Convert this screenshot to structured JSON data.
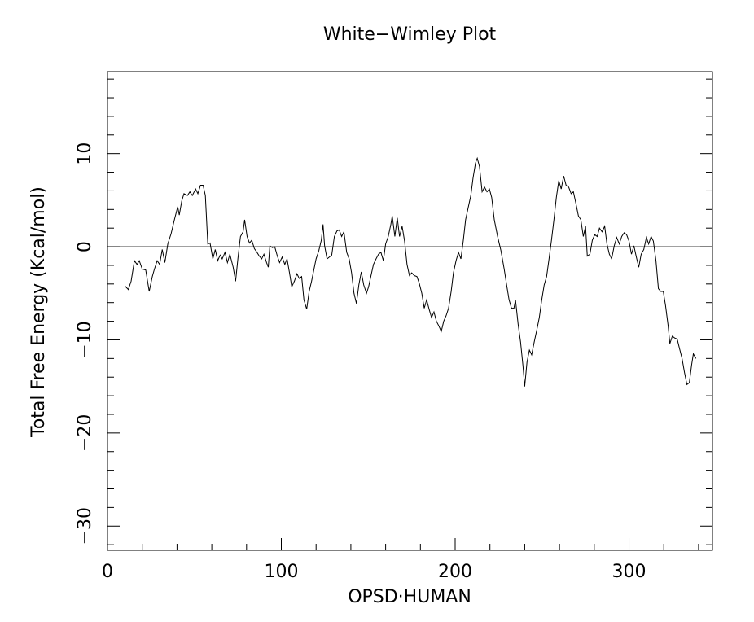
{
  "chart_data": {
    "type": "line",
    "title": "White−Wimley Plot",
    "x_label": "OPSD·HUMAN",
    "y_label": "Total Free Energy (Kcal/mol)",
    "xlim": [
      0,
      348
    ],
    "ylim": [
      -32.6,
      18.8
    ],
    "xticks": [
      0,
      100,
      200,
      300
    ],
    "yticks": [
      {
        "value": -30,
        "label": "−30"
      },
      {
        "value": -20,
        "label": "−20"
      },
      {
        "value": -10,
        "label": "−10"
      },
      0,
      10
    ],
    "xminorticks": [
      20,
      40,
      60,
      80,
      120,
      140,
      160,
      180,
      220,
      240,
      260,
      280,
      320,
      340
    ],
    "yminorticks": [
      -32,
      -28,
      -26,
      -24,
      -22,
      -18,
      -16,
      -14,
      -12,
      -8,
      -6,
      -4,
      -2,
      2,
      4,
      6,
      8,
      12,
      14,
      16,
      18
    ],
    "hline": 0,
    "color": "#000000",
    "x": [
      10,
      12,
      13.6,
      15.5,
      17,
      18.3,
      20,
      22,
      24,
      25.8,
      27,
      28.6,
      30,
      31.5,
      33,
      34.7,
      36.6,
      38.5,
      40.4,
      41.3,
      42.7,
      44,
      46,
      47.4,
      48.8,
      50.7,
      52,
      53.5,
      55,
      56.3,
      57.7,
      59,
      60.6,
      62,
      63.4,
      64.8,
      66,
      67.6,
      69,
      70.4,
      72.3,
      73.7,
      75,
      76.5,
      78,
      78.9,
      80.3,
      81.7,
      83,
      84.5,
      86,
      87.3,
      88.7,
      90,
      91.5,
      92.5,
      93.4,
      94.8,
      96.2,
      97.7,
      99,
      100.5,
      102,
      103.3,
      104.7,
      106,
      107.5,
      109,
      110.3,
      111.7,
      113,
      114.6,
      116,
      117.4,
      118.8,
      120,
      121.6,
      123,
      124,
      124.9,
      126.3,
      127.7,
      129,
      130.5,
      132,
      133.3,
      134.7,
      136,
      137.6,
      139,
      140.4,
      141.8,
      143.2,
      144.6,
      146,
      147.4,
      149,
      150.2,
      151.6,
      153,
      154.5,
      155.9,
      157.3,
      158.7,
      160,
      161.5,
      163,
      163.8,
      165.3,
      166.7,
      168,
      169.5,
      170.9,
      172.3,
      173.7,
      175,
      176.5,
      178,
      179.3,
      180.8,
      182.2,
      183.6,
      185,
      186.4,
      187.8,
      189.2,
      190.6,
      192,
      193.4,
      194.8,
      196.2,
      197.7,
      199,
      200.5,
      201.9,
      203.3,
      204.7,
      206,
      207.5,
      209,
      210.3,
      211.7,
      212.7,
      214,
      215.5,
      216.9,
      218.3,
      219.7,
      221,
      222.5,
      224.4,
      226.3,
      228.2,
      229.6,
      231,
      232.4,
      233.8,
      234.7,
      236.2,
      237.6,
      239,
      240,
      241.3,
      242.7,
      244,
      245.5,
      247,
      248.4,
      249.8,
      251.2,
      252.6,
      254,
      255.4,
      256.8,
      258.2,
      259.6,
      261,
      262.4,
      263.8,
      265.3,
      266.7,
      268,
      269.5,
      270.9,
      272.3,
      273.7,
      275,
      276,
      277.5,
      278.9,
      280.3,
      281.7,
      283,
      284.5,
      286,
      287.3,
      288.7,
      290,
      291.5,
      292.9,
      294.4,
      295.8,
      297.2,
      298.6,
      300,
      301.4,
      302.8,
      304.2,
      305.6,
      307,
      308.5,
      310,
      311.3,
      312.7,
      314,
      315.5,
      316.9,
      318.3,
      319.7,
      321,
      322.5,
      323.5,
      324.9,
      326.3,
      327.7,
      329,
      330.5,
      331.9,
      333.3,
      334.7,
      336,
      337,
      338.5
    ],
    "values": [
      -4.2,
      -4.6,
      -3.7,
      -1.5,
      -1.9,
      -1.5,
      -2.4,
      -2.5,
      -4.8,
      -3.2,
      -2.4,
      -1.5,
      -1.9,
      -0.3,
      -1.7,
      0.3,
      1.4,
      2.9,
      4.3,
      3.4,
      4.9,
      5.7,
      5.5,
      5.9,
      5.5,
      6.2,
      5.7,
      6.6,
      6.6,
      5.5,
      0.3,
      0.4,
      -1.3,
      -0.3,
      -1.5,
      -0.9,
      -1.3,
      -0.6,
      -1.7,
      -0.8,
      -2.2,
      -3.7,
      -1.3,
      1.1,
      1.6,
      2.9,
      1.1,
      0.4,
      0.7,
      -0.2,
      -0.6,
      -1.0,
      -1.3,
      -0.8,
      -1.7,
      -2.2,
      0.1,
      -0.1,
      0,
      -1.0,
      -1.7,
      -1.1,
      -1.9,
      -1.3,
      -2.8,
      -4.3,
      -3.7,
      -2.9,
      -3.4,
      -3.2,
      -5.7,
      -6.7,
      -4.8,
      -3.7,
      -2.4,
      -1.3,
      -0.4,
      0.7,
      2.4,
      0.1,
      -1.3,
      -1.1,
      -0.9,
      1.1,
      1.7,
      1.8,
      1.1,
      1.6,
      -0.6,
      -1.3,
      -2.8,
      -5.0,
      -6.1,
      -4.1,
      -2.7,
      -4.1,
      -5.0,
      -4.3,
      -3.1,
      -1.9,
      -1.3,
      -0.8,
      -0.6,
      -1.5,
      0.3,
      1.1,
      2.4,
      3.3,
      1.1,
      3.1,
      1.1,
      2.2,
      0.6,
      -1.9,
      -3.1,
      -2.8,
      -3.1,
      -3.2,
      -3.9,
      -5.0,
      -6.6,
      -5.7,
      -6.7,
      -7.6,
      -7.0,
      -8.0,
      -8.5,
      -9.1,
      -8.0,
      -7.4,
      -6.6,
      -4.8,
      -2.8,
      -1.5,
      -0.6,
      -1.3,
      0.7,
      2.9,
      4.2,
      5.5,
      7.4,
      9.0,
      9.5,
      8.6,
      5.9,
      6.4,
      5.9,
      6.2,
      5.3,
      2.9,
      1.1,
      -0.4,
      -2.4,
      -4.1,
      -5.7,
      -6.6,
      -6.6,
      -5.7,
      -8.3,
      -10.2,
      -12.8,
      -15.0,
      -12.4,
      -11.1,
      -11.6,
      -10.2,
      -8.9,
      -7.6,
      -5.7,
      -4.1,
      -3.2,
      -1.3,
      0.7,
      2.9,
      5.3,
      7.1,
      6.2,
      7.6,
      6.6,
      6.4,
      5.7,
      5.9,
      4.6,
      3.3,
      2.9,
      1.1,
      2.2,
      -1.0,
      -0.8,
      0.7,
      1.3,
      1.1,
      2.0,
      1.6,
      2.2,
      0.3,
      -0.8,
      -1.3,
      0.1,
      1.0,
      0.3,
      1.1,
      1.5,
      1.3,
      0.6,
      -0.8,
      0.1,
      -1.1,
      -2.2,
      -0.8,
      -0.3,
      1.0,
      0.3,
      1.1,
      0.6,
      -1.5,
      -4.5,
      -4.8,
      -4.8,
      -6.3,
      -8.5,
      -10.4,
      -9.6,
      -9.8,
      -9.9,
      -10.9,
      -12.0,
      -13.5,
      -14.8,
      -14.6,
      -12.7,
      -11.5,
      -12.0
    ]
  }
}
